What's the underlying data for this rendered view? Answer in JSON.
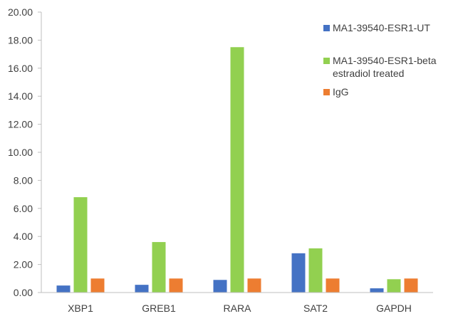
{
  "chart_data": {
    "type": "bar",
    "categories": [
      "XBP1",
      "GREB1",
      "RARA",
      "SAT2",
      "GAPDH"
    ],
    "series": [
      {
        "name": "MA1-39540-ESR1-UT",
        "color": "#4472C4",
        "values": [
          0.5,
          0.55,
          0.9,
          2.8,
          0.3
        ]
      },
      {
        "name": "MA1-39540-ESR1-beta estradiol treated",
        "name_lines": [
          "MA1-39540-ESR1-beta",
          "estradiol treated"
        ],
        "color": "#92D050",
        "values": [
          6.8,
          3.6,
          17.5,
          3.15,
          0.95
        ]
      },
      {
        "name": "IgG",
        "color": "#ED7D31",
        "values": [
          1.0,
          1.0,
          1.0,
          1.0,
          1.0
        ]
      }
    ],
    "y_ticks": [
      "0.00",
      "2.00",
      "4.00",
      "6.00",
      "8.00",
      "10.00",
      "12.00",
      "14.00",
      "16.00",
      "18.00",
      "20.00"
    ],
    "ylim": [
      0,
      20
    ],
    "grid": false,
    "legend_position": "right"
  }
}
